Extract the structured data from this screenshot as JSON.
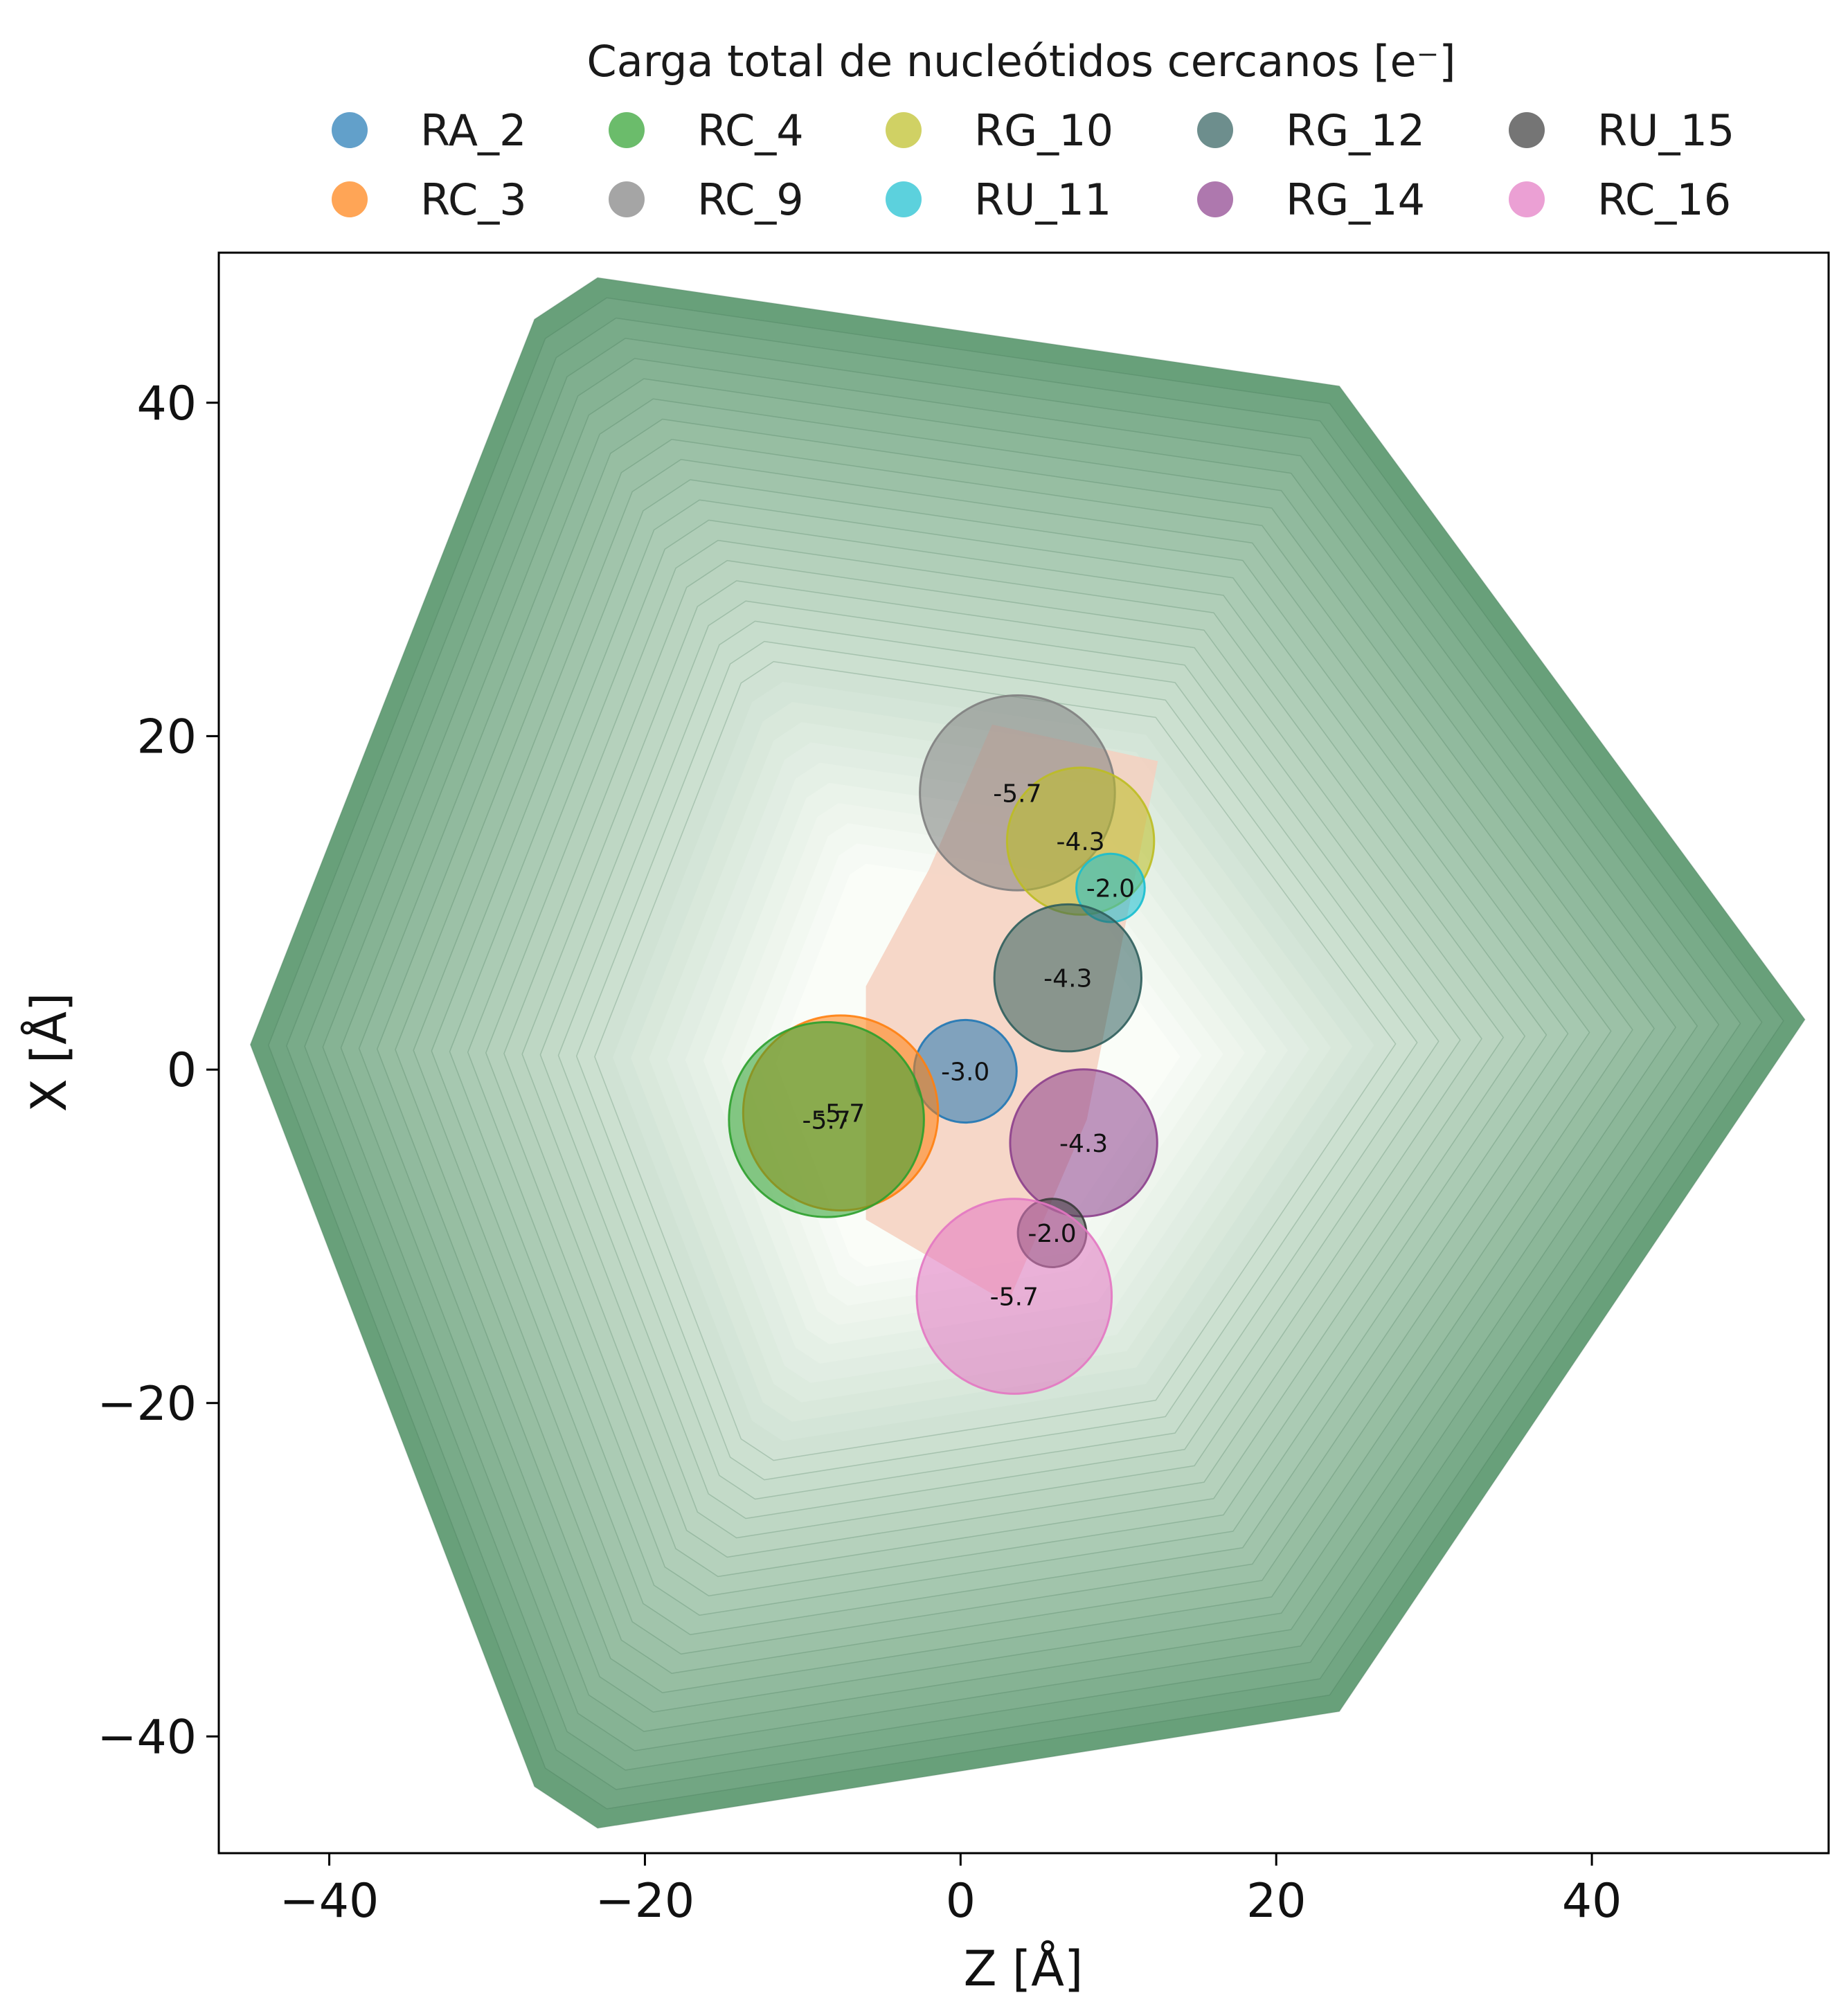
{
  "chart_data": {
    "type": "scatter",
    "title": "",
    "legend": {
      "title": "Carga total de nucleótidos cercanos [e⁻]",
      "placement": "top"
    },
    "xlabel": "Z [Å]",
    "ylabel": "X [Å]",
    "xlim": [
      -47,
      55
    ],
    "ylim": [
      -47,
      49
    ],
    "xticks": [
      -40,
      -20,
      0,
      20,
      40
    ],
    "yticks": [
      -40,
      -20,
      0,
      20,
      40
    ],
    "xtick_labels": [
      "−40",
      "−20",
      "0",
      "20",
      "40"
    ],
    "ytick_labels": [
      "−40",
      "−20",
      "0",
      "20",
      "40"
    ],
    "grid": false,
    "background": {
      "type": "filled-contour",
      "colormap": "greens",
      "boundary": [
        [
          -23,
          47.5
        ],
        [
          -27,
          45
        ],
        [
          -45,
          1.5
        ],
        [
          -27,
          -43
        ],
        [
          -23,
          -45.5
        ],
        [
          24,
          -38.5
        ],
        [
          53.5,
          3
        ],
        [
          24,
          41
        ]
      ],
      "inner_region_color": "#f4d0bf",
      "inner_region": [
        [
          2,
          20.7
        ],
        [
          12.5,
          18.5
        ],
        [
          8,
          -3
        ],
        [
          3,
          -14
        ],
        [
          -6,
          -9
        ],
        [
          -6,
          5
        ],
        [
          -2,
          12
        ]
      ]
    },
    "series": [
      {
        "name": "RA_2",
        "color": "#1f77b4",
        "z": 0.3,
        "x": -0.1,
        "charge": -3.0,
        "label": "-3.0"
      },
      {
        "name": "RC_3",
        "color": "#ff7f0e",
        "z": -7.6,
        "x": -2.6,
        "charge": -5.7,
        "label": "-5.7"
      },
      {
        "name": "RC_4",
        "color": "#2ca02c",
        "z": -8.5,
        "x": -3.0,
        "charge": -5.7,
        "label": "-5.7"
      },
      {
        "name": "RC_9",
        "color": "#7f7f7f",
        "z": 3.6,
        "x": 16.6,
        "charge": -5.7,
        "label": "-5.7"
      },
      {
        "name": "RG_10",
        "color": "#bcbd22",
        "z": 7.6,
        "x": 13.7,
        "charge": -4.3,
        "label": "-4.3"
      },
      {
        "name": "RU_11",
        "color": "#17becf",
        "z": 9.5,
        "x": 10.9,
        "charge": -2.0,
        "label": "-2.0"
      },
      {
        "name": "RG_12",
        "color": "#2f5e5c",
        "z": 6.8,
        "x": 5.5,
        "charge": -4.3,
        "label": "-4.3"
      },
      {
        "name": "RG_14",
        "color": "#8c3f8c",
        "z": 7.8,
        "x": -4.4,
        "charge": -4.3,
        "label": "-4.3"
      },
      {
        "name": "RU_15",
        "color": "#3b3b3b",
        "z": 5.8,
        "x": -9.8,
        "charge": -2.0,
        "label": "-2.0"
      },
      {
        "name": "RC_16",
        "color": "#e377c2",
        "z": 3.4,
        "x": -13.6,
        "charge": -5.7,
        "label": "-5.7"
      }
    ]
  }
}
